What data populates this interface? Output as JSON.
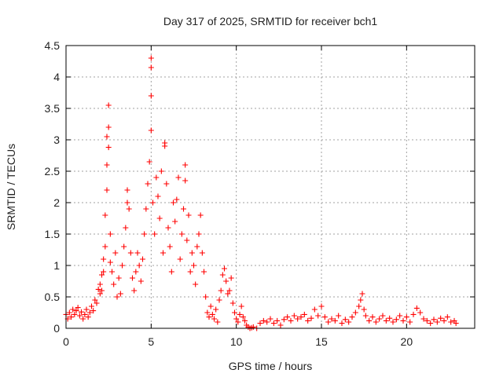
{
  "chart_data": {
    "type": "scatter",
    "title": "Day 317 of 2025, SRMTID for receiver bch1",
    "xlabel": "GPS time / hours",
    "ylabel": "SRMTID / TECUs",
    "xlim": [
      0,
      24
    ],
    "ylim": [
      0,
      4.5
    ],
    "x_ticks": [
      0,
      5,
      10,
      15,
      20
    ],
    "y_ticks": [
      0,
      0.5,
      1,
      1.5,
      2,
      2.5,
      3,
      3.5,
      4,
      4.5
    ],
    "x_tick_labels": [
      "0",
      "5",
      "10",
      "15",
      "20"
    ],
    "y_tick_labels": [
      "0",
      "0.5",
      "1",
      "1.5",
      "2",
      "2.5",
      "3",
      "3.5",
      "4",
      "4.5"
    ],
    "grid": true,
    "marker": "+",
    "color": "#ff0000",
    "series": [
      {
        "name": "SRMTID",
        "points": [
          [
            0.0,
            0.22
          ],
          [
            0.1,
            0.15
          ],
          [
            0.2,
            0.25
          ],
          [
            0.3,
            0.18
          ],
          [
            0.4,
            0.3
          ],
          [
            0.5,
            0.22
          ],
          [
            0.6,
            0.28
          ],
          [
            0.7,
            0.33
          ],
          [
            0.8,
            0.2
          ],
          [
            0.9,
            0.26
          ],
          [
            1.0,
            0.15
          ],
          [
            1.1,
            0.22
          ],
          [
            1.2,
            0.3
          ],
          [
            1.3,
            0.18
          ],
          [
            1.4,
            0.25
          ],
          [
            1.5,
            0.35
          ],
          [
            1.6,
            0.28
          ],
          [
            1.7,
            0.45
          ],
          [
            1.8,
            0.4
          ],
          [
            1.9,
            0.62
          ],
          [
            2.0,
            0.55
          ],
          [
            2.0,
            0.7
          ],
          [
            2.1,
            0.85
          ],
          [
            2.1,
            0.6
          ],
          [
            2.2,
            1.1
          ],
          [
            2.2,
            0.9
          ],
          [
            2.3,
            1.3
          ],
          [
            2.3,
            1.8
          ],
          [
            2.4,
            2.2
          ],
          [
            2.4,
            2.6
          ],
          [
            2.4,
            3.05
          ],
          [
            2.5,
            2.88
          ],
          [
            2.5,
            3.2
          ],
          [
            2.5,
            3.55
          ],
          [
            2.6,
            1.5
          ],
          [
            2.6,
            1.05
          ],
          [
            2.7,
            0.9
          ],
          [
            2.8,
            0.7
          ],
          [
            2.9,
            1.2
          ],
          [
            3.0,
            0.5
          ],
          [
            3.1,
            0.8
          ],
          [
            3.2,
            0.55
          ],
          [
            3.3,
            1.0
          ],
          [
            3.4,
            1.3
          ],
          [
            3.5,
            1.6
          ],
          [
            3.6,
            2.0
          ],
          [
            3.6,
            2.2
          ],
          [
            3.7,
            1.9
          ],
          [
            3.8,
            1.2
          ],
          [
            3.9,
            0.8
          ],
          [
            4.0,
            0.6
          ],
          [
            4.1,
            0.9
          ],
          [
            4.2,
            1.2
          ],
          [
            4.3,
            1.0
          ],
          [
            4.4,
            0.75
          ],
          [
            4.5,
            1.1
          ],
          [
            4.6,
            1.5
          ],
          [
            4.7,
            1.9
          ],
          [
            4.8,
            2.3
          ],
          [
            4.9,
            2.65
          ],
          [
            5.0,
            3.15
          ],
          [
            5.0,
            3.7
          ],
          [
            5.0,
            4.15
          ],
          [
            5.0,
            4.3
          ],
          [
            5.1,
            2.0
          ],
          [
            5.2,
            1.5
          ],
          [
            5.3,
            2.4
          ],
          [
            5.4,
            2.1
          ],
          [
            5.5,
            1.75
          ],
          [
            5.6,
            2.5
          ],
          [
            5.7,
            1.2
          ],
          [
            5.8,
            2.9
          ],
          [
            5.8,
            2.95
          ],
          [
            5.9,
            2.3
          ],
          [
            6.0,
            1.6
          ],
          [
            6.1,
            1.3
          ],
          [
            6.2,
            0.9
          ],
          [
            6.3,
            2.0
          ],
          [
            6.4,
            1.7
          ],
          [
            6.5,
            2.05
          ],
          [
            6.6,
            2.4
          ],
          [
            6.7,
            1.1
          ],
          [
            6.8,
            1.5
          ],
          [
            6.9,
            1.9
          ],
          [
            7.0,
            2.35
          ],
          [
            7.0,
            2.6
          ],
          [
            7.1,
            1.4
          ],
          [
            7.2,
            1.8
          ],
          [
            7.3,
            0.9
          ],
          [
            7.4,
            1.2
          ],
          [
            7.5,
            1.0
          ],
          [
            7.6,
            0.7
          ],
          [
            7.7,
            1.3
          ],
          [
            7.8,
            1.5
          ],
          [
            7.9,
            1.8
          ],
          [
            8.0,
            1.2
          ],
          [
            8.1,
            0.9
          ],
          [
            8.2,
            0.5
          ],
          [
            8.3,
            0.25
          ],
          [
            8.4,
            0.18
          ],
          [
            8.5,
            0.35
          ],
          [
            8.6,
            0.22
          ],
          [
            8.7,
            0.15
          ],
          [
            8.8,
            0.3
          ],
          [
            8.9,
            0.1
          ],
          [
            9.0,
            0.45
          ],
          [
            9.1,
            0.6
          ],
          [
            9.2,
            0.85
          ],
          [
            9.3,
            0.95
          ],
          [
            9.4,
            0.75
          ],
          [
            9.5,
            0.55
          ],
          [
            9.6,
            0.6
          ],
          [
            9.7,
            0.8
          ],
          [
            9.8,
            0.4
          ],
          [
            9.9,
            0.25
          ],
          [
            10.0,
            0.15
          ],
          [
            10.1,
            0.1
          ],
          [
            10.2,
            0.22
          ],
          [
            10.3,
            0.35
          ],
          [
            10.4,
            0.18
          ],
          [
            10.5,
            0.12
          ],
          [
            10.6,
            0.05
          ],
          [
            10.7,
            0.02
          ],
          [
            10.8,
            0.0
          ],
          [
            10.9,
            0.01
          ],
          [
            11.0,
            0.02
          ],
          [
            11.2,
            0.0
          ],
          [
            11.4,
            0.08
          ],
          [
            11.6,
            0.12
          ],
          [
            11.8,
            0.1
          ],
          [
            12.0,
            0.15
          ],
          [
            12.2,
            0.08
          ],
          [
            12.4,
            0.12
          ],
          [
            12.6,
            0.05
          ],
          [
            12.8,
            0.14
          ],
          [
            13.0,
            0.18
          ],
          [
            13.2,
            0.12
          ],
          [
            13.4,
            0.2
          ],
          [
            13.6,
            0.15
          ],
          [
            13.8,
            0.18
          ],
          [
            14.0,
            0.22
          ],
          [
            14.2,
            0.12
          ],
          [
            14.4,
            0.16
          ],
          [
            14.6,
            0.3
          ],
          [
            14.8,
            0.2
          ],
          [
            15.0,
            0.35
          ],
          [
            15.2,
            0.18
          ],
          [
            15.4,
            0.1
          ],
          [
            15.6,
            0.15
          ],
          [
            15.8,
            0.12
          ],
          [
            16.0,
            0.2
          ],
          [
            16.2,
            0.08
          ],
          [
            16.4,
            0.14
          ],
          [
            16.6,
            0.1
          ],
          [
            16.8,
            0.18
          ],
          [
            17.0,
            0.25
          ],
          [
            17.2,
            0.35
          ],
          [
            17.3,
            0.45
          ],
          [
            17.4,
            0.55
          ],
          [
            17.5,
            0.3
          ],
          [
            17.6,
            0.2
          ],
          [
            17.8,
            0.12
          ],
          [
            18.0,
            0.18
          ],
          [
            18.2,
            0.1
          ],
          [
            18.4,
            0.15
          ],
          [
            18.6,
            0.2
          ],
          [
            18.8,
            0.12
          ],
          [
            19.0,
            0.16
          ],
          [
            19.2,
            0.1
          ],
          [
            19.4,
            0.14
          ],
          [
            19.6,
            0.2
          ],
          [
            19.8,
            0.12
          ],
          [
            20.0,
            0.18
          ],
          [
            20.2,
            0.1
          ],
          [
            20.4,
            0.22
          ],
          [
            20.6,
            0.32
          ],
          [
            20.8,
            0.25
          ],
          [
            21.0,
            0.15
          ],
          [
            21.2,
            0.12
          ],
          [
            21.4,
            0.08
          ],
          [
            21.6,
            0.14
          ],
          [
            21.8,
            0.1
          ],
          [
            22.0,
            0.16
          ],
          [
            22.2,
            0.12
          ],
          [
            22.4,
            0.18
          ],
          [
            22.6,
            0.1
          ],
          [
            22.8,
            0.12
          ],
          [
            22.9,
            0.08
          ]
        ]
      }
    ]
  }
}
